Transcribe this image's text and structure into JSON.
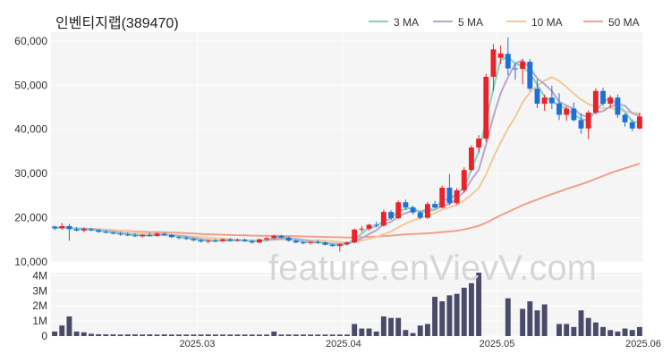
{
  "title": "인벤티지랩(389470)",
  "watermark": "feature.enVievV.com",
  "chart_data": [
    {
      "type": "candlestick",
      "title": "인벤티지랩(389470)",
      "y_ticks": [
        "60,000",
        "50,000",
        "40,000",
        "30,000",
        "20,000",
        "10,000"
      ],
      "ylim": [
        10000,
        62000
      ],
      "x_ticks": [
        "2025.03",
        "2025.04",
        "2025.05",
        "2025.06"
      ],
      "grid": true,
      "legend_position": "top-right",
      "colors": {
        "up": "#e8232b",
        "down": "#1f6fd8",
        "ma3": "#7fd3c4",
        "ma5": "#b9a5cf",
        "ma10": "#f2c89a",
        "ma50": "#f0a08c"
      },
      "series": [
        {
          "name": "3 MA"
        },
        {
          "name": "5 MA"
        },
        {
          "name": "10 MA"
        },
        {
          "name": "50 MA"
        }
      ],
      "candles": [
        [
          18000,
          18200,
          17200,
          17600
        ],
        [
          17600,
          18800,
          17300,
          18100
        ],
        [
          18100,
          18600,
          14800,
          17400
        ],
        [
          17400,
          17900,
          16900,
          17100
        ],
        [
          17100,
          17800,
          16700,
          17500
        ],
        [
          17400,
          17700,
          16900,
          17200
        ],
        [
          17200,
          17400,
          16600,
          16800
        ],
        [
          16800,
          17200,
          16400,
          16600
        ],
        [
          16600,
          16900,
          16200,
          16400
        ],
        [
          16400,
          16800,
          15900,
          16200
        ],
        [
          16200,
          16700,
          15800,
          16000
        ],
        [
          16000,
          16500,
          15600,
          15800
        ],
        [
          15800,
          16300,
          15500,
          16100
        ],
        [
          16100,
          16600,
          15700,
          15900
        ],
        [
          15900,
          16700,
          15700,
          16400
        ],
        [
          16400,
          16600,
          15900,
          16100
        ],
        [
          16100,
          16300,
          15400,
          15600
        ],
        [
          15600,
          15900,
          15100,
          15400
        ],
        [
          15400,
          15800,
          15000,
          15200
        ],
        [
          15200,
          15500,
          14600,
          14900
        ],
        [
          14900,
          15200,
          14400,
          14600
        ],
        [
          14600,
          15000,
          14200,
          14800
        ],
        [
          14800,
          15200,
          14500,
          14700
        ],
        [
          14700,
          15300,
          14500,
          15100
        ],
        [
          15100,
          15400,
          14600,
          14800
        ],
        [
          14800,
          15300,
          14600,
          15000
        ],
        [
          15000,
          15300,
          14500,
          14700
        ],
        [
          14700,
          15000,
          14100,
          14400
        ],
        [
          14400,
          15300,
          14200,
          15100
        ],
        [
          15100,
          15600,
          14700,
          15400
        ],
        [
          15400,
          16200,
          15100,
          15900
        ],
        [
          15900,
          16100,
          15300,
          15500
        ],
        [
          15500,
          15700,
          14600,
          14800
        ],
        [
          14800,
          15000,
          14200,
          14400
        ],
        [
          14400,
          14700,
          14000,
          14300
        ],
        [
          14300,
          14600,
          13900,
          14500
        ],
        [
          14500,
          15000,
          14100,
          14400
        ],
        [
          14400,
          14600,
          13700,
          13900
        ],
        [
          13900,
          14100,
          13400,
          13600
        ],
        [
          13600,
          14200,
          12300,
          14000
        ],
        [
          14000,
          14600,
          13700,
          14400
        ],
        [
          14400,
          17600,
          14200,
          17300
        ],
        [
          17300,
          18100,
          16700,
          17500
        ],
        [
          17500,
          18600,
          17100,
          18400
        ],
        [
          18400,
          19100,
          17900,
          18200
        ],
        [
          18200,
          21800,
          18000,
          21300
        ],
        [
          21300,
          21700,
          19500,
          19900
        ],
        [
          19900,
          23900,
          19700,
          23500
        ],
        [
          23500,
          24100,
          21800,
          22300
        ],
        [
          22300,
          22700,
          20700,
          21200
        ],
        [
          21200,
          21600,
          19600,
          20000
        ],
        [
          20000,
          23600,
          19700,
          23100
        ],
        [
          23100,
          23800,
          22100,
          22300
        ],
        [
          22300,
          27300,
          22100,
          26800
        ],
        [
          26800,
          29900,
          22900,
          23300
        ],
        [
          23300,
          26700,
          23000,
          26200
        ],
        [
          26200,
          31400,
          25700,
          30800
        ],
        [
          30800,
          36400,
          30400,
          35900
        ],
        [
          35900,
          38700,
          34800,
          37900
        ],
        [
          37900,
          52600,
          37200,
          51900
        ],
        [
          51900,
          59300,
          48700,
          58100
        ],
        [
          56200,
          59000,
          54800,
          57200
        ],
        [
          57100,
          60800,
          52300,
          53800
        ],
        [
          53800,
          55100,
          51200,
          53700
        ],
        [
          53700,
          56000,
          50200,
          55300
        ],
        [
          55300,
          55900,
          48700,
          49200
        ],
        [
          49200,
          51400,
          44800,
          45800
        ],
        [
          45800,
          47900,
          44200,
          47200
        ],
        [
          47200,
          49900,
          44600,
          45900
        ],
        [
          45900,
          48200,
          42100,
          43300
        ],
        [
          43300,
          45200,
          41900,
          44700
        ],
        [
          44700,
          46100,
          41800,
          42100
        ],
        [
          42100,
          43600,
          39000,
          40200
        ],
        [
          40200,
          44300,
          37800,
          43800
        ],
        [
          43800,
          49300,
          43400,
          48700
        ],
        [
          48700,
          49400,
          45300,
          45800
        ],
        [
          45800,
          47700,
          44900,
          47200
        ],
        [
          47200,
          47900,
          42600,
          43300
        ],
        [
          43300,
          43700,
          40600,
          41600
        ],
        [
          41600,
          42300,
          39600,
          40200
        ],
        [
          40200,
          43800,
          40000,
          42900
        ]
      ],
      "volume": {
        "ylim": [
          0,
          4200000
        ],
        "y_ticks": [
          "4M",
          "3M",
          "2M",
          "1M",
          "0"
        ],
        "values": [
          300000,
          700000,
          1300000,
          300000,
          250000,
          150000,
          120000,
          110000,
          110000,
          100000,
          110000,
          110000,
          100000,
          110000,
          100000,
          110000,
          100000,
          100000,
          100000,
          100000,
          100000,
          110000,
          100000,
          100000,
          100000,
          100000,
          100000,
          100000,
          100000,
          100000,
          300000,
          100000,
          100000,
          100000,
          100000,
          100000,
          100000,
          100000,
          100000,
          100000,
          100000,
          800000,
          500000,
          500000,
          300000,
          1300000,
          1200000,
          1200000,
          400000,
          200000,
          700000,
          800000,
          2600000,
          2300000,
          2700000,
          2800000,
          3200000,
          3500000,
          4200000,
          0,
          0,
          0,
          2500000,
          0,
          1800000,
          2300000,
          1700000,
          2100000,
          0,
          800000,
          800000,
          600000,
          1700000,
          1200000,
          900000,
          600000,
          400000,
          300000,
          500000,
          400000,
          600000
        ]
      }
    }
  ]
}
